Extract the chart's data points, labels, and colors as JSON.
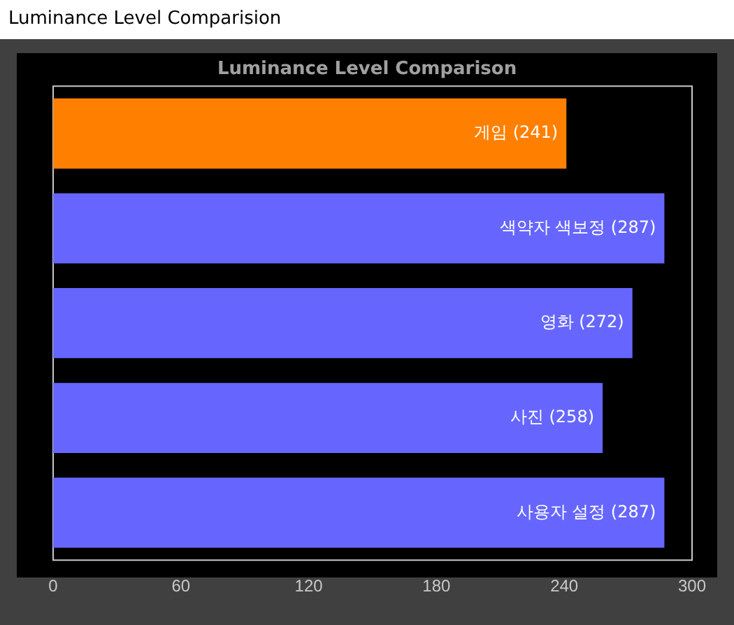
{
  "chart_data": {
    "type": "bar",
    "orientation": "horizontal",
    "title": "Luminance Level Comparison",
    "annotations": [
      "Luminance Level Comparision"
    ],
    "categories": [
      null,
      null,
      null,
      null,
      null
    ],
    "values": [
      241,
      287,
      272,
      258,
      287
    ],
    "colors": [
      "#ff8000",
      "#6666ff",
      "#6666ff",
      "#6666ff",
      "#6666ff"
    ],
    "value_labels": [
      "게임 (241)",
      "색약자 색보정 (287)",
      "영화 (272)",
      "사진 (258)",
      "사용자 설정 (287)"
    ],
    "xlim": [
      0,
      300
    ],
    "xticks": [
      0,
      60,
      120,
      180,
      240,
      300
    ],
    "grid": false,
    "legend": false,
    "tick_labels": "x"
  }
}
